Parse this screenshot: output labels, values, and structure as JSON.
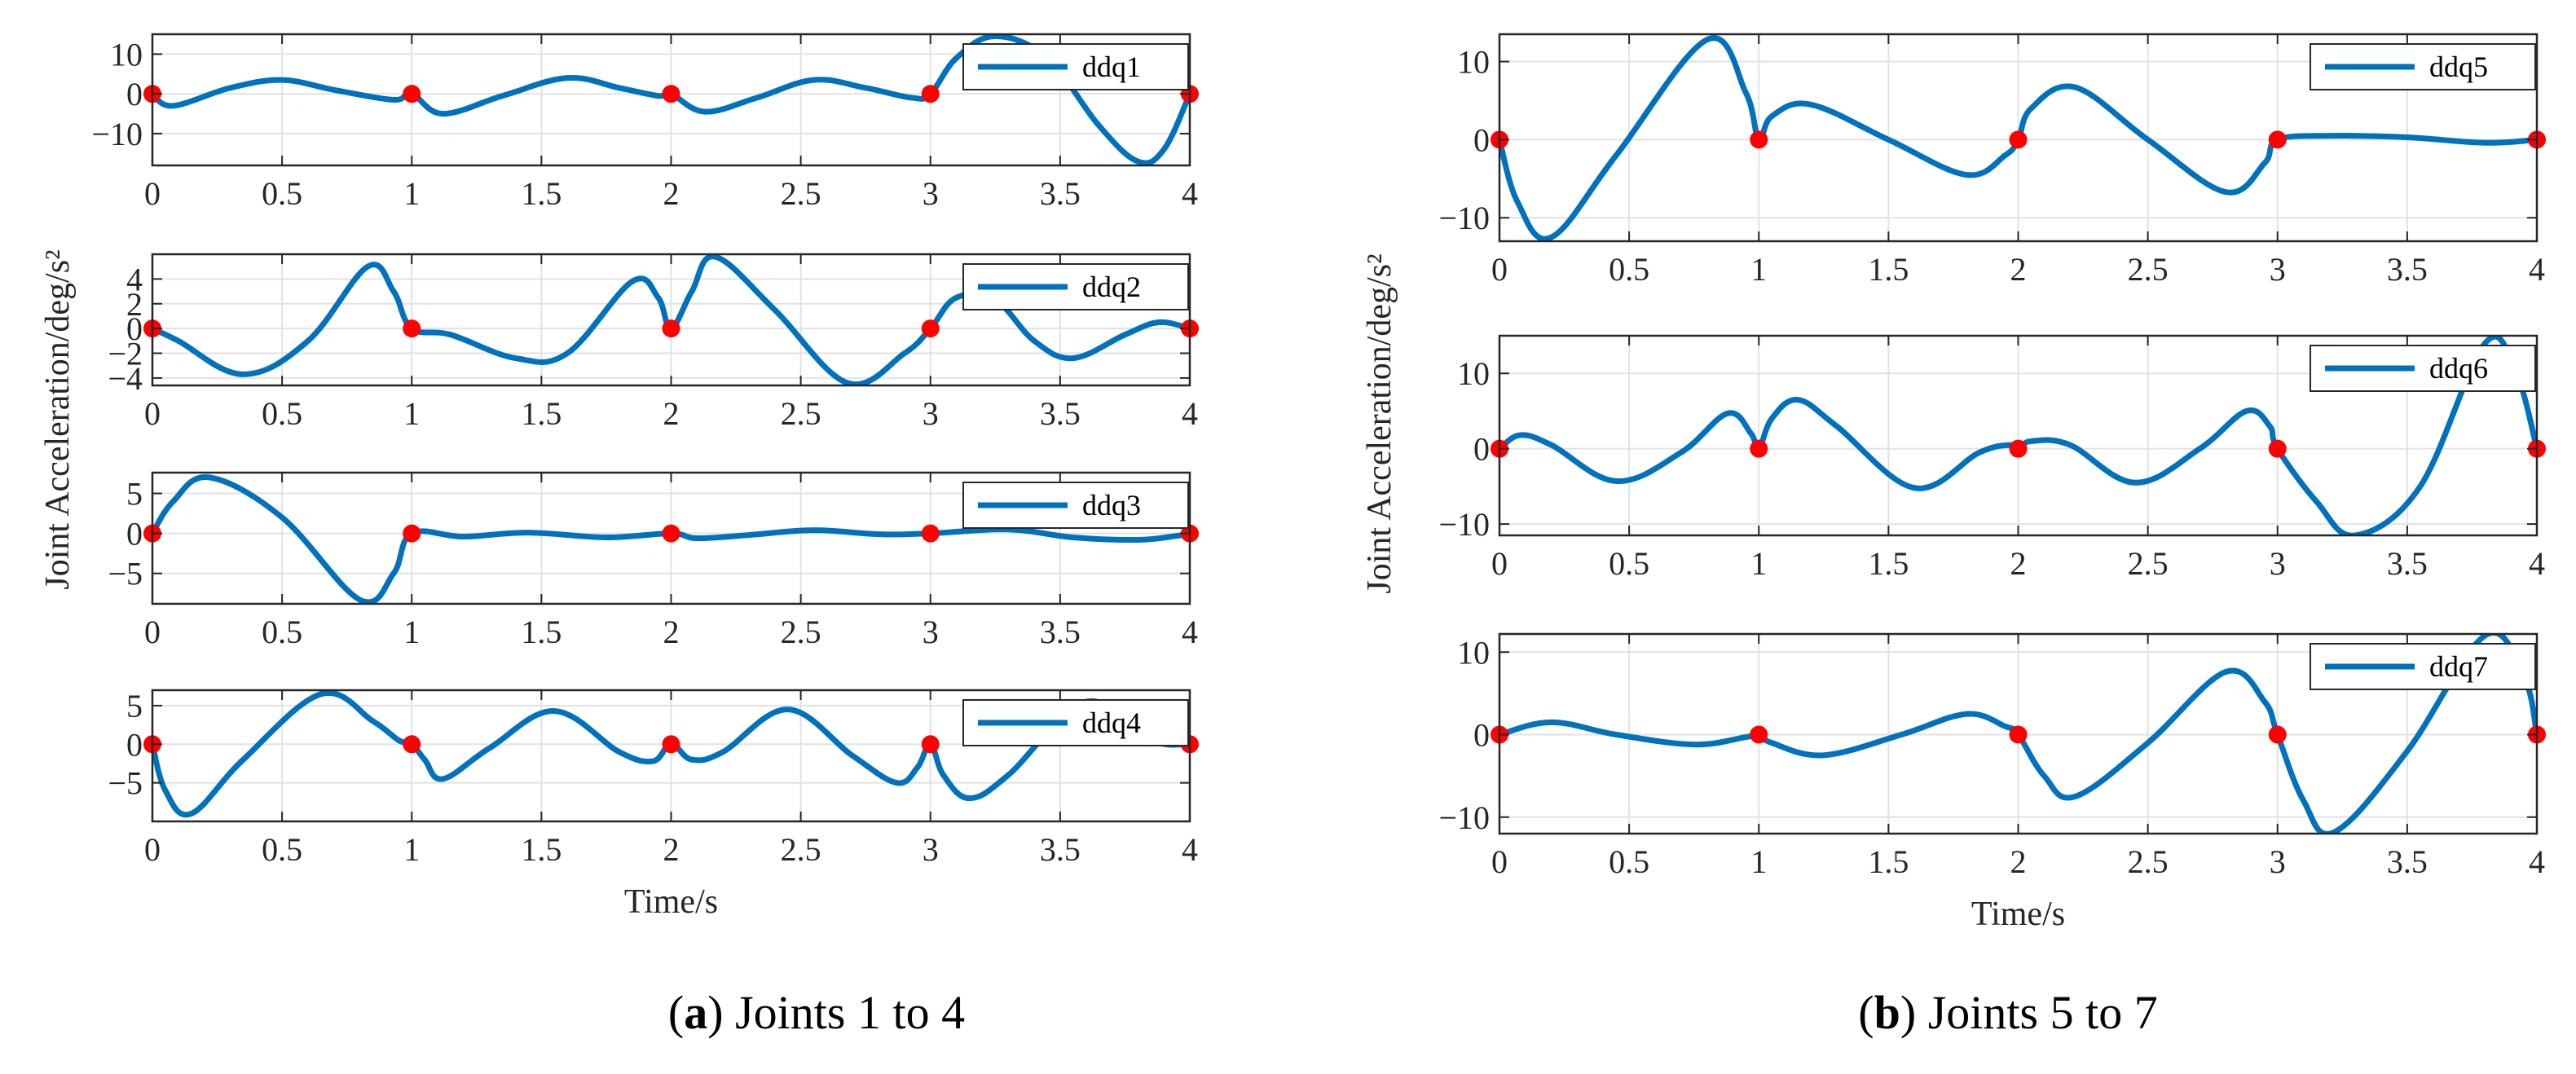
{
  "figure": {
    "caption_a": {
      "letter": "a",
      "text": "Joints 1 to 4"
    },
    "caption_b": {
      "letter": "b",
      "text": "Joints 5 to 7"
    }
  },
  "colors": {
    "line": "#0072BD",
    "marker": "#FF0000",
    "axis": "#262626",
    "grid": "#E2E2E2"
  },
  "chart_data": [
    {
      "type": "line",
      "panel": "a",
      "joint": 1,
      "legend": "ddq1",
      "legend_position": "top-right",
      "xlim": [
        0,
        4
      ],
      "ylim": [
        -18,
        15
      ],
      "xticks": [
        0,
        0.5,
        1,
        1.5,
        2,
        2.5,
        3,
        3.5,
        4
      ],
      "xticklabels": [
        "0",
        "0.5",
        "1",
        "1.5",
        "2",
        "2.5",
        "3",
        "3.5",
        "4"
      ],
      "yticks": [
        -10,
        0,
        10
      ],
      "yticklabels": [
        "−10",
        "0",
        "10"
      ],
      "xlabel": "",
      "ylabel": "Joint Acceleration/deg/s²",
      "grid": true,
      "x": [
        0,
        0.08,
        0.3,
        0.5,
        0.7,
        0.93,
        1,
        1.12,
        1.35,
        1.6,
        1.8,
        1.95,
        2,
        2.13,
        2.33,
        2.55,
        2.75,
        2.93,
        3,
        3.1,
        3.25,
        3.45,
        3.65,
        3.8,
        3.9,
        4
      ],
      "y": [
        0,
        -3,
        1.5,
        3.5,
        1,
        -1.5,
        0,
        -5,
        -0.5,
        4,
        1.5,
        -0.5,
        0,
        -4.5,
        -1,
        3.5,
        1.5,
        -1,
        0,
        9,
        14.5,
        9,
        -8,
        -17,
        -14,
        0
      ],
      "markers_x": [
        0,
        1,
        2,
        3,
        4
      ],
      "markers_y": [
        0,
        0,
        0,
        0,
        0
      ]
    },
    {
      "type": "line",
      "panel": "a",
      "joint": 2,
      "legend": "ddq2",
      "legend_position": "top-right",
      "xlim": [
        0,
        4
      ],
      "ylim": [
        -4.6,
        6
      ],
      "xticks": [
        0,
        0.5,
        1,
        1.5,
        2,
        2.5,
        3,
        3.5,
        4
      ],
      "xticklabels": [
        "0",
        "0.5",
        "1",
        "1.5",
        "2",
        "2.5",
        "3",
        "3.5",
        "4"
      ],
      "yticks": [
        -4,
        -2,
        0,
        2,
        4
      ],
      "yticklabels": [
        "−4",
        "−2",
        "0",
        "2",
        "4"
      ],
      "xlabel": "",
      "ylabel": "Joint Acceleration/deg/s²",
      "grid": true,
      "x": [
        0,
        0.1,
        0.35,
        0.6,
        0.83,
        0.93,
        1,
        1.15,
        1.4,
        1.6,
        1.85,
        1.95,
        2,
        2.08,
        2.17,
        2.4,
        2.68,
        2.9,
        3,
        3.1,
        3.25,
        3.4,
        3.55,
        3.75,
        3.88,
        4
      ],
      "y": [
        0,
        -1,
        -3.7,
        -1,
        5,
        3,
        0,
        -0.5,
        -2.4,
        -2,
        3.8,
        2.5,
        0,
        3,
        5.8,
        1.5,
        -4.4,
        -2,
        0,
        2.5,
        2.3,
        -1,
        -2.4,
        -0.5,
        0.5,
        0
      ],
      "markers_x": [
        0,
        1,
        2,
        3,
        4
      ],
      "markers_y": [
        0,
        0,
        0,
        0,
        0
      ]
    },
    {
      "type": "line",
      "panel": "a",
      "joint": 3,
      "legend": "ddq3",
      "legend_position": "top-right",
      "xlim": [
        0,
        4
      ],
      "ylim": [
        -8.8,
        7.6
      ],
      "xticks": [
        0,
        0.5,
        1,
        1.5,
        2,
        2.5,
        3,
        3.5,
        4
      ],
      "xticklabels": [
        "0",
        "0.5",
        "1",
        "1.5",
        "2",
        "2.5",
        "3",
        "3.5",
        "4"
      ],
      "yticks": [
        -5,
        0,
        5
      ],
      "yticklabels": [
        "−5",
        "0",
        "5"
      ],
      "xlabel": "",
      "ylabel": "Joint Acceleration/deg/s²",
      "grid": true,
      "x": [
        0,
        0.08,
        0.22,
        0.5,
        0.8,
        0.93,
        1,
        1.2,
        1.45,
        1.75,
        2,
        2.1,
        2.3,
        2.55,
        2.8,
        3,
        3.3,
        3.55,
        3.8,
        3.95,
        4
      ],
      "y": [
        0,
        4,
        7,
        2,
        -8.3,
        -5,
        0,
        -0.4,
        0.1,
        -0.5,
        0,
        -0.6,
        -0.2,
        0.4,
        -0.1,
        0,
        0.5,
        -0.5,
        -0.8,
        -0.3,
        0
      ],
      "markers_x": [
        0,
        1,
        2,
        3,
        4
      ],
      "markers_y": [
        0,
        0,
        0,
        0,
        0
      ]
    },
    {
      "type": "line",
      "panel": "a",
      "joint": 4,
      "legend": "ddq4",
      "legend_position": "top-right",
      "xlim": [
        0,
        4
      ],
      "ylim": [
        -10,
        7
      ],
      "xticks": [
        0,
        0.5,
        1,
        1.5,
        2,
        2.5,
        3,
        3.5,
        4
      ],
      "xticklabels": [
        "0",
        "0.5",
        "1",
        "1.5",
        "2",
        "2.5",
        "3",
        "3.5",
        "4"
      ],
      "yticks": [
        -5,
        0,
        5
      ],
      "yticklabels": [
        "−5",
        "0",
        "5"
      ],
      "xlabel": "Time/s",
      "ylabel": "Joint Acceleration/deg/s²",
      "grid": true,
      "x": [
        0,
        0.05,
        0.15,
        0.35,
        0.65,
        0.85,
        0.95,
        1,
        1.05,
        1.12,
        1.3,
        1.55,
        1.8,
        1.93,
        2,
        2.08,
        2.2,
        2.45,
        2.7,
        2.87,
        2.95,
        3,
        3.05,
        3.15,
        3.3,
        3.6,
        3.85,
        4
      ],
      "y": [
        0,
        -6,
        -9,
        -2,
        6.5,
        3,
        0.5,
        0,
        -2,
        -4.5,
        -0.5,
        4.3,
        -1,
        -2.2,
        0,
        -2,
        -1,
        4.5,
        -1.5,
        -5,
        -3,
        0,
        -4,
        -7,
        -4,
        5.5,
        0.5,
        0
      ],
      "markers_x": [
        0,
        1,
        2,
        3,
        4
      ],
      "markers_y": [
        0,
        0,
        0,
        0,
        0
      ]
    },
    {
      "type": "line",
      "panel": "b",
      "joint": 5,
      "legend": "ddq5",
      "legend_position": "top-right",
      "xlim": [
        0,
        4
      ],
      "ylim": [
        -13,
        13.5
      ],
      "xticks": [
        0,
        0.5,
        1,
        1.5,
        2,
        2.5,
        3,
        3.5,
        4
      ],
      "xticklabels": [
        "0",
        "0.5",
        "1",
        "1.5",
        "2",
        "2.5",
        "3",
        "3.5",
        "4"
      ],
      "yticks": [
        -10,
        0,
        10
      ],
      "yticklabels": [
        "−10",
        "0",
        "10"
      ],
      "xlabel": "",
      "ylabel": "Joint Acceleration/deg/s²",
      "grid": true,
      "x": [
        0,
        0.07,
        0.2,
        0.45,
        0.8,
        0.95,
        1,
        1.05,
        1.2,
        1.5,
        1.8,
        1.95,
        2,
        2.05,
        2.22,
        2.5,
        2.8,
        2.95,
        3,
        3.2,
        3.5,
        3.8,
        4
      ],
      "y": [
        0,
        -8,
        -12.5,
        -2,
        12.8,
        6,
        0,
        3,
        4.5,
        0,
        -4.5,
        -2,
        0,
        4,
        6.7,
        0,
        -6.7,
        -3,
        0,
        0.5,
        0.3,
        -0.4,
        0
      ],
      "markers_x": [
        0,
        1,
        2,
        3,
        4
      ],
      "markers_y": [
        0,
        0,
        0,
        0,
        0
      ]
    },
    {
      "type": "line",
      "panel": "b",
      "joint": 6,
      "legend": "ddq6",
      "legend_position": "top-right",
      "xlim": [
        0,
        4
      ],
      "ylim": [
        -11.5,
        15
      ],
      "xticks": [
        0,
        0.5,
        1,
        1.5,
        2,
        2.5,
        3,
        3.5,
        4
      ],
      "xticklabels": [
        "0",
        "0.5",
        "1",
        "1.5",
        "2",
        "2.5",
        "3",
        "3.5",
        "4"
      ],
      "yticks": [
        -10,
        0,
        10
      ],
      "yticklabels": [
        "−10",
        "0",
        "10"
      ],
      "xlabel": "",
      "ylabel": "Joint Acceleration/deg/s²",
      "grid": true,
      "x": [
        0,
        0.08,
        0.2,
        0.45,
        0.7,
        0.88,
        0.97,
        1,
        1.05,
        1.15,
        1.3,
        1.6,
        1.85,
        1.97,
        2,
        2.05,
        2.2,
        2.45,
        2.7,
        2.88,
        2.97,
        3,
        3.15,
        3.3,
        3.55,
        3.8,
        3.92,
        4
      ],
      "y": [
        0,
        1.8,
        0.5,
        -4.3,
        -0.5,
        4.7,
        2,
        0,
        4,
        6.5,
        3,
        -5.2,
        -0.5,
        0.5,
        0,
        1,
        0.5,
        -4.5,
        0,
        5,
        3,
        0,
        -7,
        -11.5,
        -5,
        14,
        10,
        0
      ],
      "markers_x": [
        0,
        1,
        2,
        3,
        4
      ],
      "markers_y": [
        0,
        0,
        0,
        0,
        0
      ]
    },
    {
      "type": "line",
      "panel": "b",
      "joint": 7,
      "legend": "ddq7",
      "legend_position": "top-right",
      "xlim": [
        0,
        4
      ],
      "ylim": [
        -12,
        12.2
      ],
      "xticks": [
        0,
        0.5,
        1,
        1.5,
        2,
        2.5,
        3,
        3.5,
        4
      ],
      "xticklabels": [
        "0",
        "0.5",
        "1",
        "1.5",
        "2",
        "2.5",
        "3",
        "3.5",
        "4"
      ],
      "yticks": [
        -10,
        0,
        10
      ],
      "yticklabels": [
        "−10",
        "0",
        "10"
      ],
      "xlabel": "Time/s",
      "ylabel": "Joint Acceleration/deg/s²",
      "grid": true,
      "x": [
        0,
        0.2,
        0.45,
        0.75,
        0.95,
        1,
        1.05,
        1.25,
        1.55,
        1.8,
        1.95,
        2,
        2.1,
        2.22,
        2.5,
        2.8,
        2.95,
        3,
        3.1,
        3.22,
        3.5,
        3.8,
        3.95,
        4
      ],
      "y": [
        0,
        1.5,
        0,
        -1.2,
        -0.3,
        0,
        -1,
        -2.5,
        0,
        2.5,
        1,
        0,
        -5,
        -7.5,
        -1,
        7.6,
        4,
        0,
        -8,
        -11.8,
        -2,
        12,
        7,
        0
      ],
      "markers_x": [
        0,
        1,
        2,
        3,
        4
      ],
      "markers_y": [
        0,
        0,
        0,
        0,
        0
      ]
    }
  ]
}
